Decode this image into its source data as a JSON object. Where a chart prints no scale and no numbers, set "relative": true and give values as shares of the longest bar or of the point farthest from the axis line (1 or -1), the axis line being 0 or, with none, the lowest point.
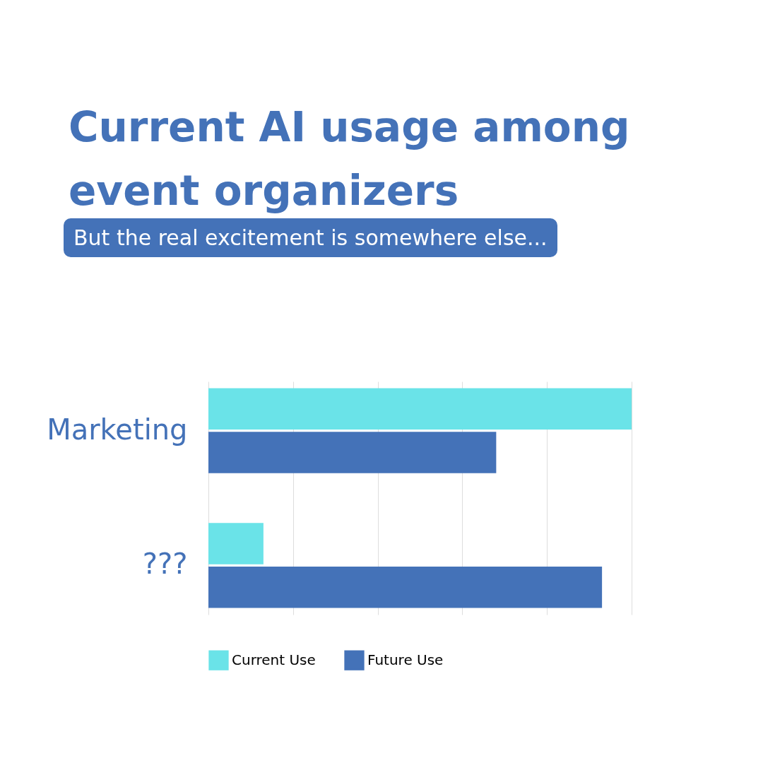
{
  "chart_data": {
    "type": "bar",
    "orientation": "horizontal",
    "relative": true,
    "title": "Current AI usage among event organizers",
    "subtitle": "But the real excitement is somewhere else...",
    "categories": [
      "Marketing",
      "???"
    ],
    "series": [
      {
        "name": "Current Use",
        "color": "#6ae3e8",
        "values": [
          1,
          0.13
        ]
      },
      {
        "name": "Future Use",
        "color": "#4472b8",
        "values": [
          0.68,
          0.93
        ]
      }
    ],
    "grid": "x",
    "legend": "bottom"
  }
}
